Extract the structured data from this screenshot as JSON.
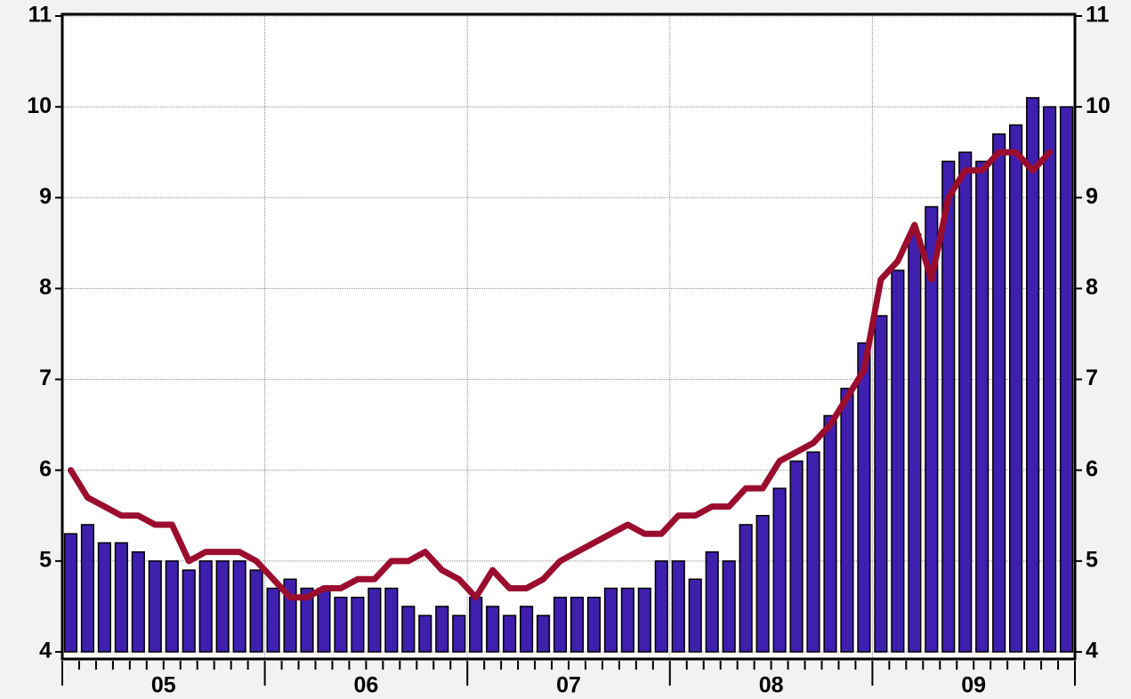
{
  "chart_data": {
    "type": "bar_line",
    "categories": [
      null,
      null,
      null,
      null,
      null,
      null,
      null,
      null,
      null,
      null,
      null,
      null,
      null,
      null,
      null,
      null,
      null,
      null,
      null,
      null,
      null,
      null,
      null,
      null,
      null,
      null,
      null,
      null,
      null,
      null,
      null,
      null,
      null,
      null,
      null,
      null,
      null,
      null,
      null,
      null,
      null,
      null,
      null,
      null,
      null,
      null,
      null,
      null,
      null,
      null,
      null,
      null,
      null,
      null,
      null,
      null,
      null,
      null,
      null,
      null
    ],
    "year_labels": [
      "05",
      "06",
      "07",
      "08",
      "09"
    ],
    "series": [
      {
        "type": "bar",
        "color": "#3f1fae",
        "values": [
          5.3,
          5.4,
          5.2,
          5.2,
          5.1,
          5.0,
          5.0,
          4.9,
          5.0,
          5.0,
          5.0,
          4.9,
          4.7,
          4.8,
          4.7,
          4.7,
          4.6,
          4.6,
          4.7,
          4.7,
          4.5,
          4.4,
          4.5,
          4.4,
          4.6,
          4.5,
          4.4,
          4.5,
          4.4,
          4.6,
          4.6,
          4.6,
          4.7,
          4.7,
          4.7,
          5.0,
          5.0,
          4.8,
          5.1,
          5.0,
          5.4,
          5.5,
          5.8,
          6.1,
          6.2,
          6.6,
          6.9,
          7.4,
          7.7,
          8.2,
          8.6,
          8.9,
          9.4,
          9.5,
          9.4,
          9.7,
          9.8,
          10.1,
          10.0,
          10.0
        ]
      },
      {
        "type": "line",
        "color": "#9b0d2e",
        "values": [
          6.0,
          5.7,
          5.6,
          5.5,
          5.5,
          5.4,
          5.4,
          5.0,
          5.1,
          5.1,
          5.1,
          5.0,
          4.8,
          4.6,
          4.6,
          4.7,
          4.7,
          4.8,
          4.8,
          5.0,
          5.0,
          5.1,
          4.9,
          4.8,
          4.6,
          4.9,
          4.7,
          4.7,
          4.8,
          5.0,
          5.1,
          5.2,
          5.3,
          5.4,
          5.3,
          5.3,
          5.5,
          5.5,
          5.6,
          5.6,
          5.8,
          5.8,
          6.1,
          6.2,
          6.3,
          6.5,
          6.8,
          7.1,
          8.1,
          8.3,
          8.7,
          8.1,
          9.0,
          9.3,
          9.3,
          9.5,
          9.5,
          9.3,
          9.5,
          null
        ]
      }
    ],
    "ylim": [
      4,
      11
    ],
    "yticks": [
      4,
      5,
      6,
      7,
      8,
      9,
      10,
      11
    ],
    "grid": true
  }
}
